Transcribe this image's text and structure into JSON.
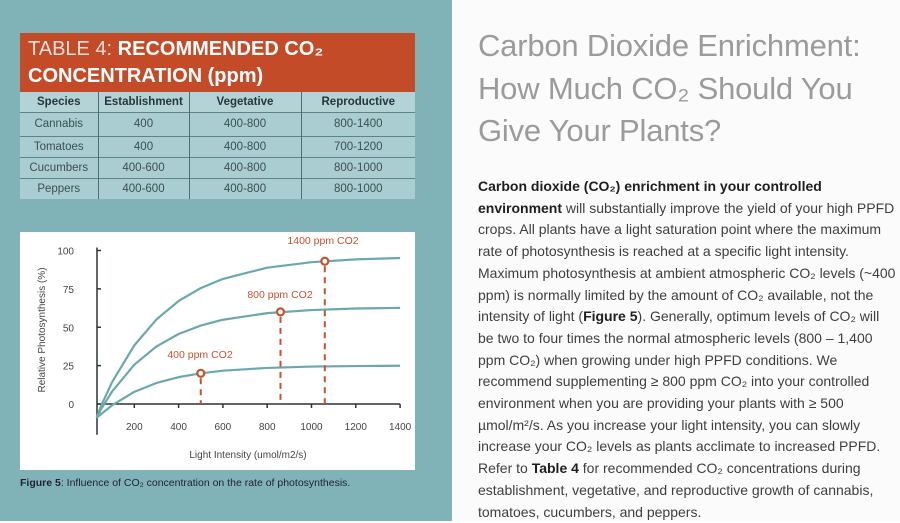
{
  "table": {
    "title_light": "TABLE 4: ",
    "title_bold_1": "RECOMMENDED CO₂",
    "title_bold_2": "CONCENTRATION (ppm)",
    "headers": [
      "Species",
      "Establishment",
      "Vegetative",
      "Reproductive"
    ],
    "rows": [
      [
        "Cannabis",
        "400",
        "400-800",
        "800-1400"
      ],
      [
        "Tomatoes",
        "400",
        "400-800",
        "700-1200"
      ],
      [
        "Cucumbers",
        "400-600",
        "400-800",
        "800-1000"
      ],
      [
        "Peppers",
        "400-600",
        "400-800",
        "800-1000"
      ]
    ]
  },
  "figure": {
    "caption_bold": "Figure 5",
    "caption": ": Influence of CO₂ concentration on the rate of photosynthesis."
  },
  "chart_data": {
    "type": "line",
    "xlabel": "Light Intensity (umol/m2/s)",
    "ylabel": "Relative Photosynthesis (%)",
    "xlim": [
      0,
      1400
    ],
    "ylim": [
      0,
      100
    ],
    "xticks": [
      "200",
      "400",
      "600",
      "800",
      "1000",
      "1200",
      "1400"
    ],
    "yticks": [
      "0",
      "25",
      "50",
      "75",
      "100"
    ],
    "grid": false,
    "x": [
      30,
      50,
      100,
      200,
      300,
      400,
      500,
      600,
      800,
      1000,
      1200,
      1400
    ],
    "series": [
      {
        "label": "400 ppm CO2",
        "values": [
          -9,
          -6.6,
          -0.8,
          7.9,
          13.7,
          17.5,
          20,
          21.7,
          23.5,
          24.4,
          24.7,
          24.9
        ],
        "marker": {
          "x": 500,
          "y": 20
        }
      },
      {
        "label": "800 ppm CO2",
        "values": [
          -9,
          -3.4,
          8.2,
          25.6,
          37.5,
          45.6,
          51.1,
          54.9,
          59.2,
          61.2,
          62.2,
          62.6
        ],
        "marker": {
          "x": 860,
          "y": 60
        }
      },
      {
        "label": "1400 ppm CO2",
        "values": [
          -9,
          -1.2,
          14.3,
          38.2,
          55.1,
          67.1,
          75.5,
          81.5,
          88.8,
          92.4,
          94.2,
          95.1
        ],
        "marker": {
          "x": 1060,
          "y": 93
        }
      }
    ],
    "colors": {
      "curve": "#6aa8ab",
      "marker": "#c8502e",
      "axis": "#2b3437"
    }
  },
  "article": {
    "title_lines": [
      "Carbon Dioxide Enrichment:",
      "How Much CO₂ Should You",
      "Give Your Plants?"
    ],
    "p_bold1": "Carbon dioxide (CO₂) enrichment in your controlled environment",
    "p_text1": " will substantially improve the yield of your high PPFD crops. All plants have a light saturation point where the maximum rate of photosynthesis is reached at a specific light intensity. Maximum photosynthesis at ambient atmospheric CO₂ levels (~400 ppm) is normally limited by the amount of CO₂ available, not the intensity of light (",
    "p_bold2": "Figure 5",
    "p_text2": "). Generally, optimum levels of CO₂ will be two to four times the normal atmospheric levels (800 – 1,400 ppm CO₂) when growing under high PPFD conditions. We recommend supplementing ≥ 800 ppm CO₂ into your controlled environment when you are providing your plants with ≥ 500 µmol/m²/s. As you increase your light intensity, you can slowly increase your CO₂ levels as plants acclimate to increased PPFD. Refer to ",
    "p_bold3": "Table 4",
    "p_text3": " for recommended CO₂ concentrations during establishment, vegetative, and reproductive growth of cannabis, tomatoes, cucumbers, and peppers."
  }
}
